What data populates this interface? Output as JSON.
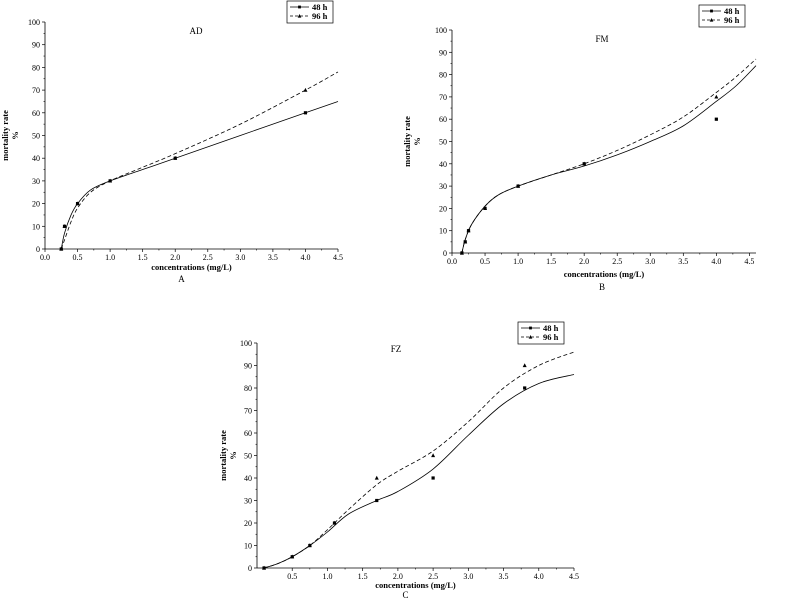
{
  "chart_data": [
    {
      "type": "line",
      "title": "AD",
      "panel_label": "A",
      "xlabel": "concentrations (mg/L)",
      "ylabel": "mortality rate\n%",
      "xlim": [
        0,
        4.5
      ],
      "ylim": [
        0,
        100
      ],
      "xticks": [
        "0.0",
        "0.5",
        "1.0",
        "1.5",
        "2.0",
        "2.5",
        "3.0",
        "3.5",
        "4.0",
        "4.5"
      ],
      "yticks": [
        "0",
        "10",
        "20",
        "30",
        "40",
        "50",
        "60",
        "70",
        "80",
        "90",
        "100"
      ],
      "grid": false,
      "legend_position": "top-right",
      "series": [
        {
          "name": "48 h",
          "marker": "square",
          "line": "solid",
          "points": {
            "x": [
              0.25,
              0.3,
              0.5,
              1.0,
              2.0,
              4.0
            ],
            "y": [
              0,
              10,
              20,
              30,
              40,
              60
            ]
          },
          "fit": {
            "x": [
              0.25,
              0.3,
              0.4,
              0.5,
              0.7,
              1.0,
              1.5,
              2.0,
              3.0,
              4.0,
              4.5
            ],
            "y": [
              0,
              7,
              15,
              20,
              26,
              30,
              35,
              40,
              50,
              60,
              65
            ]
          }
        },
        {
          "name": "96 h",
          "marker": "triangle",
          "line": "dashed",
          "points": {
            "x": [
              0.25,
              0.3,
              0.5,
              1.0,
              2.0,
              4.0
            ],
            "y": [
              0,
              10,
              20,
              30,
              40,
              70
            ]
          },
          "fit": {
            "x": [
              0.25,
              0.3,
              0.4,
              0.5,
              0.7,
              1.0,
              1.5,
              2.0,
              3.0,
              4.0,
              4.5
            ],
            "y": [
              0,
              4,
              12,
              18,
              25,
              30,
              36,
              42,
              55,
              70,
              78
            ]
          }
        }
      ]
    },
    {
      "type": "line",
      "title": "FM",
      "panel_label": "B",
      "xlabel": "concentrations (mg/L)",
      "ylabel": "mortality rate\n%",
      "xlim": [
        0,
        4.6
      ],
      "ylim": [
        0,
        100
      ],
      "xticks": [
        "0.0",
        "0.5",
        "1.0",
        "1.5",
        "2.0",
        "2.5",
        "3.0",
        "3.5",
        "4.0",
        "4.5"
      ],
      "yticks": [
        "0",
        "10",
        "20",
        "30",
        "40",
        "50",
        "60",
        "70",
        "80",
        "90",
        "100"
      ],
      "grid": false,
      "legend_position": "top-right",
      "series": [
        {
          "name": "48 h",
          "marker": "square",
          "line": "solid",
          "points": {
            "x": [
              0.15,
              0.2,
              0.25,
              0.5,
              1.0,
              2.0,
              4.0
            ],
            "y": [
              0,
              5,
              10,
              20,
              30,
              40,
              60
            ]
          },
          "fit": {
            "x": [
              0.15,
              0.2,
              0.3,
              0.5,
              0.7,
              1.0,
              1.5,
              2.0,
              2.5,
              3.0,
              3.5,
              4.0,
              4.3,
              4.6
            ],
            "y": [
              0,
              6,
              13,
              21,
              26,
              30,
              35,
              39,
              44,
              50,
              57,
              68,
              75,
              84
            ]
          }
        },
        {
          "name": "96 h",
          "marker": "triangle",
          "line": "dashed",
          "points": {
            "x": [
              0.15,
              0.2,
              0.25,
              0.5,
              1.0,
              2.0,
              4.0
            ],
            "y": [
              0,
              5,
              10,
              20,
              30,
              40,
              70
            ]
          },
          "fit": {
            "x": [
              0.15,
              0.2,
              0.3,
              0.5,
              0.7,
              1.0,
              1.5,
              2.0,
              2.5,
              3.0,
              3.5,
              4.0,
              4.3,
              4.6
            ],
            "y": [
              0,
              6,
              13,
              21,
              26,
              30,
              35,
              40,
              46,
              53,
              61,
              72,
              79,
              87
            ]
          }
        }
      ]
    },
    {
      "type": "line",
      "title": "FZ",
      "panel_label": "C",
      "xlabel": "concentrations (mg/L)",
      "ylabel": "mortality rate\n%",
      "xlim": [
        0,
        4.5
      ],
      "ylim": [
        0,
        100
      ],
      "xticks": [
        "0.5",
        "1.0",
        "1.5",
        "2.0",
        "2.5",
        "3.0",
        "3.5",
        "4.0",
        "4.5"
      ],
      "yticks": [
        "0",
        "10",
        "20",
        "30",
        "40",
        "50",
        "60",
        "70",
        "80",
        "90",
        "100"
      ],
      "grid": false,
      "legend_position": "top-right",
      "series": [
        {
          "name": "48 h",
          "marker": "square",
          "line": "solid",
          "points": {
            "x": [
              0.1,
              0.5,
              0.75,
              1.1,
              1.7,
              2.5,
              3.8
            ],
            "y": [
              0,
              5,
              10,
              20,
              30,
              40,
              80
            ]
          },
          "fit": {
            "x": [
              0.1,
              0.3,
              0.5,
              0.75,
              1.0,
              1.3,
              1.7,
              2.0,
              2.5,
              3.0,
              3.5,
              4.0,
              4.5
            ],
            "y": [
              0,
              2,
              5,
              10,
              16,
              24,
              30,
              34,
              44,
              59,
              73,
              82,
              86
            ]
          }
        },
        {
          "name": "96 h",
          "marker": "triangle",
          "line": "dashed",
          "points": {
            "x": [
              0.1,
              0.5,
              0.75,
              1.1,
              1.7,
              2.5,
              3.8
            ],
            "y": [
              0,
              5,
              10,
              20,
              40,
              50,
              90
            ]
          },
          "fit": {
            "x": [
              0.1,
              0.3,
              0.5,
              0.75,
              1.0,
              1.3,
              1.7,
              2.0,
              2.5,
              3.0,
              3.5,
              4.0,
              4.5
            ],
            "y": [
              0,
              2,
              5,
              10,
              17,
              26,
              37,
              43,
              52,
              65,
              80,
              90,
              96
            ]
          }
        }
      ]
    }
  ]
}
